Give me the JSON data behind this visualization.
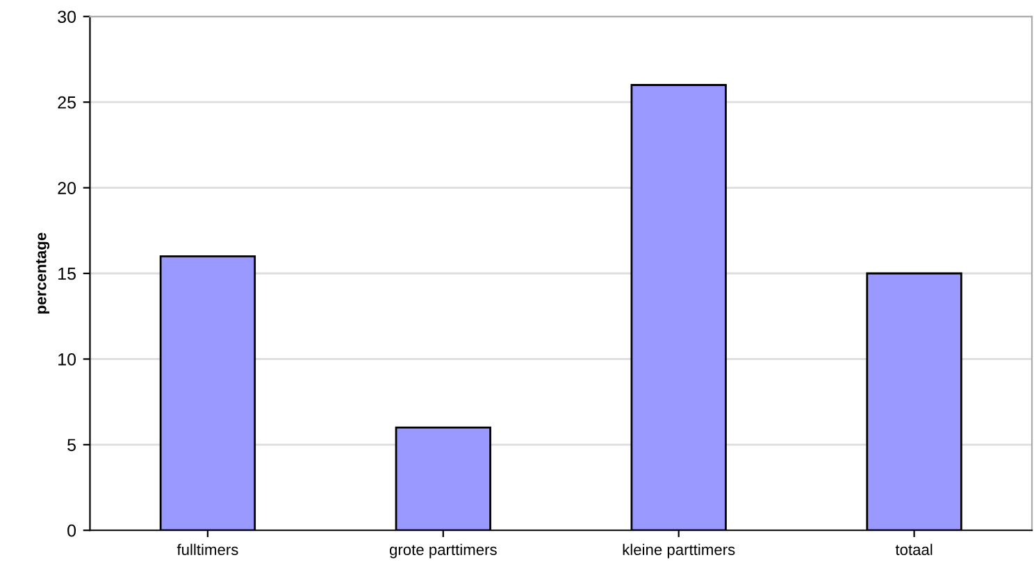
{
  "chart_data": {
    "type": "bar",
    "ylabel": "percentage",
    "categories": [
      "fulltimers",
      "grote parttimers",
      "kleine parttimers",
      "totaal"
    ],
    "values": [
      16,
      6,
      26,
      15
    ],
    "color": "#9999ff",
    "ylim": [
      0,
      30
    ],
    "yticks": [
      0,
      5,
      10,
      15,
      20,
      25,
      30
    ],
    "grid": "y"
  }
}
